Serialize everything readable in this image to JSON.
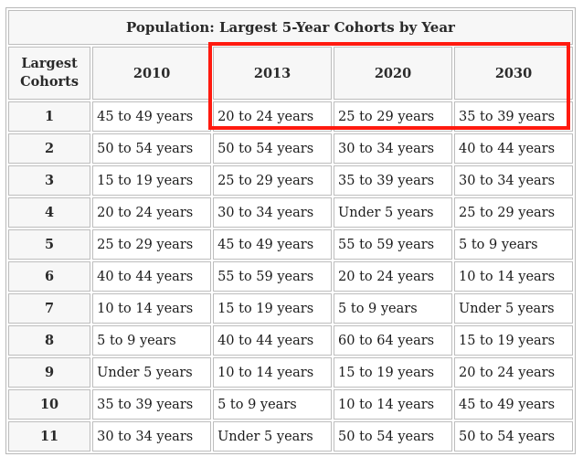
{
  "title": "Population: Largest 5-Year Cohorts by Year",
  "columns": [
    "Largest Cohorts",
    "2010",
    "2013",
    "2020",
    "2030"
  ],
  "rows": [
    {
      "rank": "1",
      "values": [
        "45 to 49 years",
        "20 to 24 years",
        "25 to 29 years",
        "35 to 39 years"
      ]
    },
    {
      "rank": "2",
      "values": [
        "50 to 54 years",
        "50 to 54 years",
        "30 to 34 years",
        "40 to 44 years"
      ]
    },
    {
      "rank": "3",
      "values": [
        "15 to 19 years",
        "25 to 29 years",
        "35 to 39 years",
        "30 to 34 years"
      ]
    },
    {
      "rank": "4",
      "values": [
        "20 to 24 years",
        "30 to 34 years",
        "Under 5 years",
        "25 to 29 years"
      ]
    },
    {
      "rank": "5",
      "values": [
        "25 to 29 years",
        "45 to 49 years",
        "55 to 59 years",
        "5 to 9 years"
      ]
    },
    {
      "rank": "6",
      "values": [
        "40 to 44 years",
        "55 to 59 years",
        "20 to 24 years",
        "10 to 14 years"
      ]
    },
    {
      "rank": "7",
      "values": [
        "10 to 14 years",
        "15 to 19 years",
        "5 to 9 years",
        "Under 5 years"
      ]
    },
    {
      "rank": "8",
      "values": [
        "5 to 9 years",
        "40 to 44 years",
        "60 to 64 years",
        "15 to 19 years"
      ]
    },
    {
      "rank": "9",
      "values": [
        "Under 5 years",
        "10 to 14 years",
        "15 to 19 years",
        "20 to 24 years"
      ]
    },
    {
      "rank": "10",
      "values": [
        "35 to 39 years",
        "5 to 9 years",
        "10 to 14 years",
        "45 to 49 years"
      ]
    },
    {
      "rank": "11",
      "values": [
        "30 to 34 years",
        "Under 5 years",
        "50 to 54 years",
        "50 to 54 years"
      ]
    }
  ],
  "highlight_color": "#ff1a0f"
}
